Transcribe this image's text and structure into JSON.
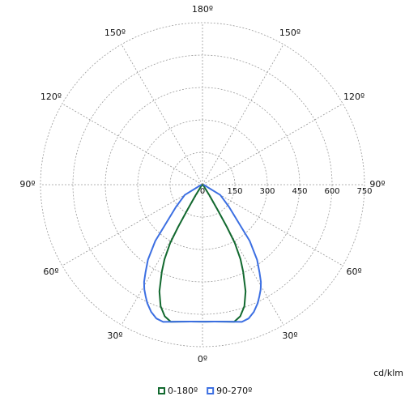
{
  "chart_data": {
    "type": "polar-photometric",
    "angles": [
      0,
      5,
      10,
      13,
      16,
      19,
      22,
      25,
      27,
      29,
      30,
      31,
      33,
      36,
      40,
      50,
      60,
      90
    ],
    "series": [
      {
        "name": "0-180º",
        "color": "#12692f",
        "values": [
          634,
          636,
          644,
          651,
          634,
          595,
          533,
          445,
          387,
          309,
          225,
          131,
          60,
          20,
          10,
          5,
          3,
          0
        ]
      },
      {
        "name": "90-270º",
        "color": "#3c6fe2",
        "values": [
          634,
          636,
          644,
          651,
          661,
          655,
          635,
          605,
          580,
          555,
          540,
          525,
          485,
          430,
          340,
          160,
          95,
          5
        ]
      }
    ],
    "rlim": [
      0,
      750
    ],
    "rticks": [
      0,
      150,
      300,
      450,
      600,
      750
    ],
    "angle_ticks": [
      {
        "value": 0,
        "label": "0º"
      },
      {
        "value": 30,
        "label": "30º"
      },
      {
        "value": 60,
        "label": "60º"
      },
      {
        "value": 90,
        "label": "90º"
      },
      {
        "value": 120,
        "label": "120º"
      },
      {
        "value": 150,
        "label": "150º"
      },
      {
        "value": 180,
        "label": "180º"
      }
    ],
    "unit": "cd/klm"
  }
}
